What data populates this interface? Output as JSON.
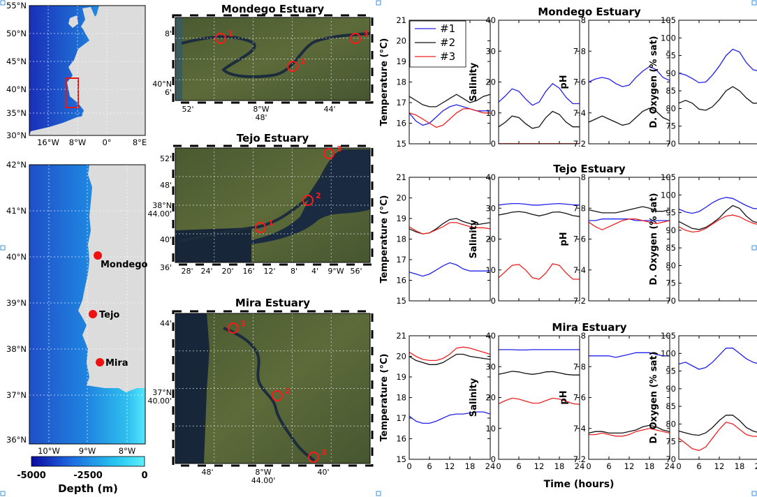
{
  "maps": {
    "overview": {
      "lat_ticks": [
        "55°N",
        "50°N",
        "45°N",
        "40°N",
        "35°N",
        "30°N"
      ],
      "lon_ticks": [
        "16°W",
        "8°W",
        "0°",
        "8°E"
      ]
    },
    "portugal": {
      "lat_ticks": [
        "42°N",
        "41°N",
        "40°N",
        "39°N",
        "38°N",
        "37°N",
        "36°N"
      ],
      "lon_ticks": [
        "10°W",
        "9°W",
        "8°W"
      ],
      "sites": [
        "Mondego",
        "Tejo",
        "Mira"
      ]
    },
    "colorbar": {
      "ticks": [
        "-5000",
        "-2500",
        "0"
      ],
      "label": "Depth (m)",
      "colors": [
        "#0a0aa0",
        "#1d6ae0",
        "#27c6f0",
        "#5cf0ff"
      ]
    },
    "satellite": [
      {
        "title": "Mondego Estuary",
        "y_ticks": [
          "8'",
          "40°N\n6'"
        ],
        "x_ticks": [
          "52'",
          "8°W\n48'",
          "44'"
        ],
        "stations": [
          "1",
          "2",
          "3"
        ]
      },
      {
        "title": "Tejo Estuary",
        "y_ticks": [
          "52'",
          "48'",
          "38°N\n44.00'",
          "40'",
          "36'"
        ],
        "x_ticks": [
          "28'",
          "24'",
          "20'",
          "16'",
          "12'",
          "8'",
          "4'",
          "9°W",
          "56'"
        ],
        "stations": [
          "1",
          "2",
          "3"
        ]
      },
      {
        "title": "Mira Estuary",
        "y_ticks": [
          "44'",
          "37°N\n40.00'"
        ],
        "x_ticks": [
          "48'",
          "8°W\n44.00'",
          "40'"
        ],
        "stations": [
          "1",
          "2",
          "3"
        ]
      }
    ]
  },
  "chart_data": {
    "type": "line",
    "x_label": "Time (hours)",
    "x_ticks": [
      0,
      6,
      12,
      18,
      24
    ],
    "x": [
      0,
      2,
      4,
      6,
      8,
      10,
      12,
      14,
      16,
      18,
      20,
      22,
      24
    ],
    "legend": [
      "#1",
      "#2",
      "#3"
    ],
    "series_colors": [
      "#2020ee",
      "#111111",
      "#ee2222"
    ],
    "variables": [
      {
        "label": "Temperature (°C)",
        "ylim": [
          15,
          21
        ],
        "ticks": [
          15,
          16,
          17,
          18,
          19,
          20,
          21
        ]
      },
      {
        "label": "Salinity",
        "ylim": [
          0,
          40
        ],
        "ticks": [
          0,
          10,
          20,
          30,
          40
        ]
      },
      {
        "label": "pH",
        "ylim": [
          7.2,
          8
        ],
        "ticks": [
          7.2,
          7.4,
          7.6,
          7.8,
          8
        ]
      },
      {
        "label": "D. Oxygen (% sat)",
        "ylim": [
          70,
          105
        ],
        "ticks": [
          70,
          75,
          80,
          85,
          90,
          95,
          100,
          105
        ]
      }
    ],
    "estuaries": [
      {
        "title": "Mondego Estuary",
        "panels": [
          {
            "series": [
              {
                "name": "#1",
                "values": [
                  16.5,
                  16.1,
                  15.9,
                  16.0,
                  16.3,
                  16.6,
                  16.8,
                  16.9,
                  16.8,
                  16.7,
                  16.6,
                  16.6,
                  16.6
                ]
              },
              {
                "name": "#2",
                "values": [
                  17.3,
                  17.1,
                  16.9,
                  16.8,
                  16.8,
                  17.0,
                  17.2,
                  17.4,
                  17.2,
                  17.0,
                  17.1,
                  17.3,
                  17.4
                ]
              },
              {
                "name": "#3",
                "values": [
                  16.5,
                  16.4,
                  16.2,
                  16.0,
                  15.8,
                  15.9,
                  16.2,
                  16.5,
                  16.7,
                  16.7,
                  16.6,
                  16.5,
                  16.5
                ]
              }
            ]
          },
          {
            "series": [
              {
                "name": "#1",
                "values": [
                  13.5,
                  15.5,
                  17.8,
                  17.0,
                  14.5,
                  12.5,
                  13.5,
                  17.0,
                  19.5,
                  18.0,
                  15.0,
                  13.0,
                  13.0
                ]
              },
              {
                "name": "#2",
                "values": [
                  5.5,
                  7.0,
                  9.0,
                  8.5,
                  6.5,
                  5.0,
                  5.5,
                  8.5,
                  10.5,
                  9.5,
                  7.0,
                  5.5,
                  5.5
                ]
              },
              {
                "name": "#3",
                "values": [
                  0.05,
                  0.05,
                  0.05,
                  0.05,
                  0.05,
                  0.05,
                  0.05,
                  0.05,
                  0.05,
                  0.05,
                  0.05,
                  0.05,
                  0.05
                ]
              }
            ]
          },
          {
            "series": [
              {
                "name": "#1",
                "values": [
                  7.6,
                  7.62,
                  7.63,
                  7.62,
                  7.59,
                  7.57,
                  7.58,
                  7.63,
                  7.67,
                  7.7,
                  7.68,
                  7.63,
                  7.61
                ]
              },
              {
                "name": "#2",
                "values": [
                  7.34,
                  7.36,
                  7.38,
                  7.36,
                  7.34,
                  7.32,
                  7.33,
                  7.37,
                  7.41,
                  7.43,
                  7.41,
                  7.37,
                  7.35
                ]
              },
              {
                "name": "#3",
                "values": []
              }
            ]
          },
          {
            "series": [
              {
                "name": "#1",
                "values": [
                  90.0,
                  89.5,
                  88.5,
                  87.3,
                  87.5,
                  89.5,
                  92.0,
                  95.0,
                  96.8,
                  96.0,
                  93.0,
                  91.0,
                  90.5
                ]
              },
              {
                "name": "#2",
                "values": [
                  81.5,
                  82.3,
                  81.5,
                  79.8,
                  79.5,
                  80.5,
                  82.5,
                  85.0,
                  86.2,
                  85.0,
                  83.0,
                  81.5,
                  81.5
                ]
              },
              {
                "name": "#3",
                "values": []
              }
            ]
          }
        ]
      },
      {
        "title": "Tejo Estuary",
        "panels": [
          {
            "series": [
              {
                "name": "#1",
                "values": [
                  16.4,
                  16.3,
                  16.2,
                  16.3,
                  16.5,
                  16.7,
                  16.85,
                  16.75,
                  16.55,
                  16.45,
                  16.45,
                  16.45,
                  16.45
                ]
              },
              {
                "name": "#2",
                "values": [
                  18.5,
                  18.35,
                  18.25,
                  18.3,
                  18.5,
                  18.75,
                  18.95,
                  19.0,
                  18.85,
                  18.75,
                  18.7,
                  18.75,
                  18.8
                ]
              },
              {
                "name": "#3",
                "values": [
                  18.6,
                  18.4,
                  18.25,
                  18.3,
                  18.45,
                  18.6,
                  18.8,
                  18.8,
                  18.7,
                  18.6,
                  18.55,
                  18.55,
                  18.5
                ]
              }
            ]
          },
          {
            "series": [
              {
                "name": "#1",
                "values": [
                  31.0,
                  31.3,
                  31.5,
                  31.5,
                  31.3,
                  31.0,
                  31.0,
                  31.2,
                  31.4,
                  31.5,
                  31.3,
                  31.1,
                  31.0
                ]
              },
              {
                "name": "#2",
                "values": [
                  27.8,
                  28.2,
                  28.7,
                  28.9,
                  28.6,
                  28.0,
                  27.5,
                  28.0,
                  28.7,
                  28.8,
                  28.3,
                  27.6,
                  27.3
                ]
              },
              {
                "name": "#3",
                "values": [
                  7.5,
                  9.5,
                  11.5,
                  11.8,
                  10.0,
                  7.5,
                  7.0,
                  9.0,
                  12.0,
                  11.5,
                  9.0,
                  7.0,
                  7.0
                ]
              }
            ]
          },
          {
            "series": [
              {
                "name": "#1",
                "values": [
                  7.72,
                  7.72,
                  7.73,
                  7.73,
                  7.73,
                  7.73,
                  7.73,
                  7.72,
                  7.72,
                  7.72,
                  7.72,
                  7.72,
                  7.72
                ]
              },
              {
                "name": "#2",
                "values": [
                  7.79,
                  7.78,
                  7.77,
                  7.77,
                  7.77,
                  7.78,
                  7.79,
                  7.8,
                  7.81,
                  7.8,
                  7.78,
                  7.78,
                  7.79
                ]
              },
              {
                "name": "#3",
                "values": [
                  7.71,
                  7.68,
                  7.66,
                  7.68,
                  7.7,
                  7.72,
                  7.73,
                  7.73,
                  7.72,
                  7.71,
                  7.7,
                  7.71,
                  7.72
                ]
              }
            ]
          },
          {
            "series": [
              {
                "name": "#1",
                "values": [
                  96.0,
                  95.2,
                  94.8,
                  95.3,
                  96.5,
                  97.8,
                  98.8,
                  99.3,
                  99.0,
                  98.0,
                  97.0,
                  96.2,
                  96.0
                ]
              },
              {
                "name": "#2",
                "values": [
                  92.5,
                  91.5,
                  90.5,
                  90.2,
                  90.8,
                  92.0,
                  93.5,
                  95.5,
                  97.0,
                  96.2,
                  94.0,
                  92.5,
                  92.0
                ]
              },
              {
                "name": "#3",
                "values": [
                  91.0,
                  90.0,
                  89.5,
                  89.7,
                  90.5,
                  91.8,
                  93.0,
                  94.0,
                  94.3,
                  93.8,
                  92.8,
                  92.0,
                  91.5
                ]
              }
            ]
          }
        ]
      },
      {
        "title": "Mira Estuary",
        "panels": [
          {
            "series": [
              {
                "name": "#1",
                "values": [
                  17.1,
                  16.85,
                  16.75,
                  16.75,
                  16.85,
                  17.0,
                  17.15,
                  17.2,
                  17.2,
                  17.25,
                  17.3,
                  17.3,
                  17.2
                ]
              },
              {
                "name": "#2",
                "values": [
                  20.0,
                  19.8,
                  19.7,
                  19.6,
                  19.6,
                  19.7,
                  19.9,
                  20.1,
                  20.1,
                  20.0,
                  19.95,
                  19.9,
                  19.85
                ]
              },
              {
                "name": "#3",
                "values": [
                  20.2,
                  20.0,
                  19.85,
                  19.8,
                  19.8,
                  19.9,
                  20.1,
                  20.4,
                  20.45,
                  20.4,
                  20.3,
                  20.2,
                  20.1
                ]
              }
            ]
          },
          {
            "series": [
              {
                "name": "#1",
                "values": [
                  35.5,
                  35.5,
                  35.5,
                  35.4,
                  35.4,
                  35.5,
                  35.5,
                  35.5,
                  35.5,
                  35.5,
                  35.5,
                  35.5,
                  35.5
                ]
              },
              {
                "name": "#2",
                "values": [
                  27.5,
                  28.0,
                  28.5,
                  28.3,
                  27.8,
                  27.5,
                  27.8,
                  28.3,
                  28.4,
                  28.0,
                  27.5,
                  27.3,
                  27.3
                ]
              },
              {
                "name": "#3",
                "values": [
                  18.0,
                  19.0,
                  19.8,
                  19.5,
                  18.8,
                  18.2,
                  18.2,
                  19.0,
                  19.8,
                  19.5,
                  18.8,
                  18.0,
                  17.8
                ]
              }
            ]
          },
          {
            "series": [
              {
                "name": "#1",
                "values": [
                  7.87,
                  7.87,
                  7.87,
                  7.87,
                  7.86,
                  7.87,
                  7.88,
                  7.89,
                  7.89,
                  7.89,
                  7.88,
                  7.87,
                  7.87
                ]
              },
              {
                "name": "#2",
                "values": [
                  7.37,
                  7.38,
                  7.38,
                  7.37,
                  7.37,
                  7.37,
                  7.38,
                  7.39,
                  7.41,
                  7.42,
                  7.41,
                  7.39,
                  7.38
                ]
              },
              {
                "name": "#3",
                "values": [
                  7.36,
                  7.36,
                  7.37,
                  7.36,
                  7.35,
                  7.35,
                  7.36,
                  7.38,
                  7.39,
                  7.4,
                  7.39,
                  7.38,
                  7.37
                ]
              }
            ]
          },
          {
            "series": [
              {
                "name": "#1",
                "values": [
                  97.0,
                  97.5,
                  96.5,
                  95.5,
                  96.0,
                  97.5,
                  99.5,
                  101.5,
                  101.5,
                  100.0,
                  98.5,
                  97.5,
                  97.0
                ]
              },
              {
                "name": "#2",
                "values": [
                  78.0,
                  77.5,
                  77.0,
                  76.8,
                  77.5,
                  79.0,
                  81.0,
                  82.5,
                  82.5,
                  81.0,
                  79.0,
                  78.0,
                  77.5
                ]
              },
              {
                "name": "#3",
                "values": [
                  76.0,
                  74.5,
                  73.0,
                  72.5,
                  73.5,
                  76.0,
                  78.5,
                  80.5,
                  80.0,
                  78.5,
                  77.0,
                  76.5,
                  76.5
                ]
              }
            ]
          }
        ]
      }
    ]
  }
}
